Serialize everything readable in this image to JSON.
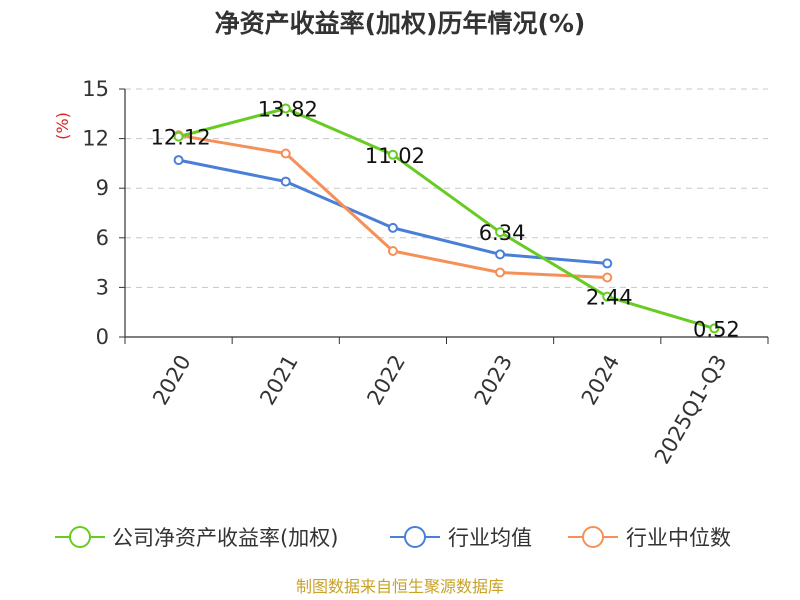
{
  "chart_data": {
    "type": "line",
    "title": "净资产收益率(加权)历年情况(%)",
    "ylabel": "(%)",
    "xlabel": "",
    "categories": [
      "2020",
      "2021",
      "2022",
      "2023",
      "2024",
      "2025Q1-Q3"
    ],
    "yticks": [
      0,
      3,
      6,
      9,
      12,
      15
    ],
    "ylim": [
      0,
      15
    ],
    "grid": true,
    "legend_position": "bottom",
    "series": [
      {
        "name": "公司净资产收益率(加权)",
        "color": "#66cc22",
        "values": [
          12.12,
          13.82,
          11.02,
          6.34,
          2.44,
          0.52
        ],
        "labels": [
          "12.12",
          "13.82",
          "11.02",
          "6.34",
          "2.44",
          "0.52"
        ]
      },
      {
        "name": "行业均值",
        "color": "#4a7fd8",
        "values": [
          10.7,
          9.4,
          6.6,
          5.0,
          4.45,
          null
        ]
      },
      {
        "name": "行业中位数",
        "color": "#f59058",
        "values": [
          12.2,
          11.1,
          5.2,
          3.9,
          3.6,
          null
        ]
      }
    ]
  },
  "source_text": "制图数据来自恒生聚源数据库"
}
